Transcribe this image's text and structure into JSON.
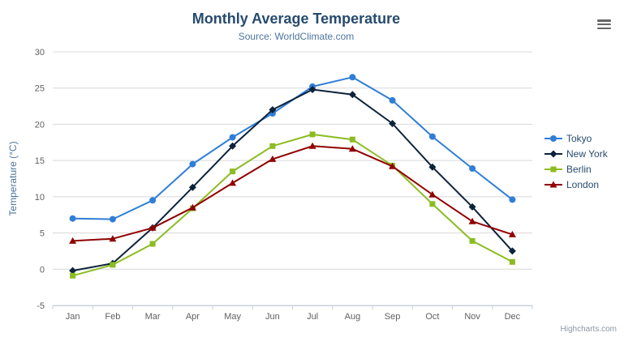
{
  "credits": "Highcharts.com",
  "context_menu": {
    "icon": "hamburger"
  },
  "chart_data": {
    "type": "line",
    "title": "Monthly Average Temperature",
    "subtitle": "Source: WorldClimate.com",
    "categories": [
      "Jan",
      "Feb",
      "Mar",
      "Apr",
      "May",
      "Jun",
      "Jul",
      "Aug",
      "Sep",
      "Oct",
      "Nov",
      "Dec"
    ],
    "xlabel": "",
    "ylabel": "Temperature (°C)",
    "ylim": [
      -5,
      30
    ],
    "ytick_interval": 5,
    "grid": true,
    "legend_position": "right",
    "series": [
      {
        "name": "Tokyo",
        "color": "#2f7ed8",
        "marker": "circle",
        "values": [
          7.0,
          6.9,
          9.5,
          14.5,
          18.2,
          21.5,
          25.2,
          26.5,
          23.3,
          18.3,
          13.9,
          9.6
        ]
      },
      {
        "name": "New York",
        "color": "#0d233a",
        "marker": "diamond",
        "values": [
          -0.2,
          0.8,
          5.7,
          11.3,
          17.0,
          22.0,
          24.8,
          24.1,
          20.1,
          14.1,
          8.6,
          2.5
        ]
      },
      {
        "name": "Berlin",
        "color": "#8bbc21",
        "marker": "square",
        "values": [
          -0.9,
          0.6,
          3.5,
          8.4,
          13.5,
          17.0,
          18.6,
          17.9,
          14.3,
          9.0,
          3.9,
          1.0
        ]
      },
      {
        "name": "London",
        "color": "#910000",
        "marker": "triangle",
        "values": [
          3.9,
          4.2,
          5.7,
          8.5,
          11.9,
          15.2,
          17.0,
          16.6,
          14.2,
          10.3,
          6.6,
          4.8
        ]
      }
    ],
    "theme": {
      "title_color": "#274b6d",
      "subtitle_color": "#4d759e",
      "axis_label_color": "#606060",
      "axis_title_color": "#4d759e",
      "grid_color": "#d8d8d8",
      "axis_line_color": "#c0d0e0",
      "legend_text_color": "#274b6d",
      "background": "#ffffff"
    }
  }
}
